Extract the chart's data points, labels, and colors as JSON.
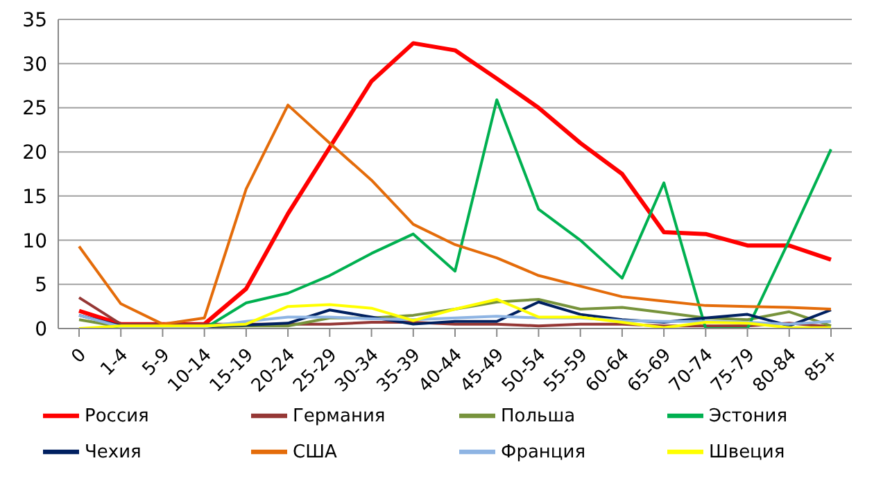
{
  "chart_data": {
    "type": "line",
    "categories": [
      "0",
      "1-4",
      "5-9",
      "10-14",
      "15-19",
      "20-24",
      "25-29",
      "30-34",
      "35-39",
      "40-44",
      "45-49",
      "50-54",
      "55-59",
      "60-64",
      "65-69",
      "70-74",
      "75-79",
      "80-84",
      "85+"
    ],
    "series": [
      {
        "name": "Россия",
        "color": "#ff0000",
        "values": [
          2,
          0.5,
          0.5,
          0.5,
          4.5,
          13,
          20.5,
          28,
          32.3,
          31.5,
          28.3,
          25,
          21,
          17.5,
          10.9,
          10.7,
          9.4,
          9.4,
          7.8
        ]
      },
      {
        "name": "Германия",
        "color": "#953735",
        "values": [
          3.5,
          0.5,
          0.5,
          0.5,
          0.5,
          0.5,
          0.5,
          0.7,
          0.7,
          0.5,
          0.5,
          0.3,
          0.5,
          0.5,
          0.3,
          0.3,
          0.3,
          0.6,
          0.2
        ]
      },
      {
        "name": "Польша",
        "color": "#77933c",
        "values": [
          1,
          0.2,
          0.2,
          0.2,
          0.3,
          0.3,
          1.2,
          1.2,
          1.5,
          2.2,
          3,
          3.3,
          2.2,
          2.4,
          1.8,
          1.2,
          1,
          1.9,
          0.3
        ]
      },
      {
        "name": "Эстония",
        "color": "#00b050",
        "values": [
          0,
          0,
          0,
          0,
          2.9,
          4,
          6,
          8.5,
          10.7,
          6.5,
          25.9,
          13.5,
          10,
          5.7,
          16.5,
          0,
          0,
          10,
          20.3
        ]
      },
      {
        "name": "Чехия",
        "color": "#002060",
        "values": [
          1.5,
          0.3,
          null,
          0.2,
          0.4,
          0.6,
          2.1,
          1.3,
          0.5,
          0.8,
          0.8,
          3,
          1.6,
          1,
          0.7,
          1.2,
          1.6,
          0.3,
          2.1
        ]
      },
      {
        "name": "США",
        "color": "#e46c0a",
        "values": [
          9.3,
          2.8,
          0.5,
          1.2,
          15.8,
          25.3,
          21,
          16.8,
          11.8,
          9.5,
          8,
          6,
          4.8,
          3.6,
          3.1,
          2.6,
          2.5,
          2.4,
          2.2
        ]
      },
      {
        "name": "Франция",
        "color": "#8eb4e3",
        "values": [
          1.5,
          0.2,
          0.2,
          0.2,
          0.8,
          1.3,
          1.3,
          1.1,
          1,
          1.2,
          1.4,
          1.2,
          1.2,
          0.9,
          0.8,
          0.8,
          0.7,
          0.5,
          0.8
        ]
      },
      {
        "name": "Швеция",
        "color": "#ffff00",
        "values": [
          0,
          0.3,
          0.3,
          0.3,
          0.5,
          2.5,
          2.7,
          2.3,
          0.9,
          2.2,
          3.3,
          1.3,
          1.3,
          0.7,
          0.1,
          0.7,
          0.6,
          0.1,
          0.1
        ]
      }
    ],
    "ylim": [
      0,
      35
    ],
    "yticks": [
      0,
      5,
      10,
      15,
      20,
      25,
      30,
      35
    ],
    "grid": "y",
    "legend": "bottom",
    "marker": "none",
    "line_style": "solid"
  }
}
